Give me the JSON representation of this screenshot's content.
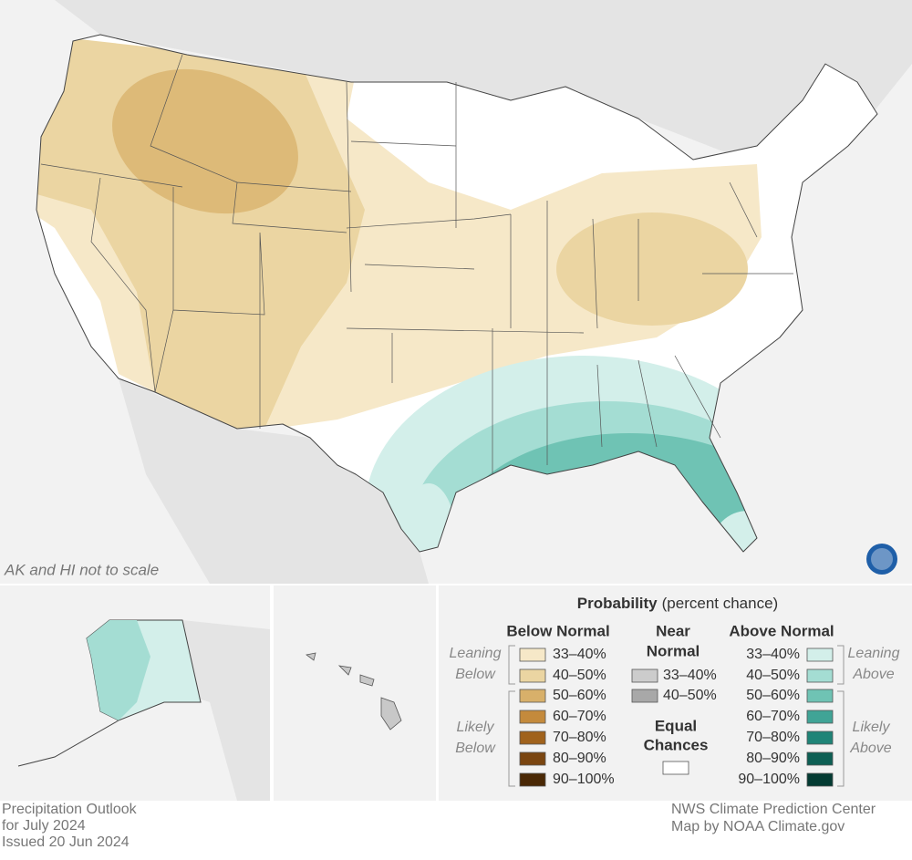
{
  "map": {
    "note": "AK and HI not to scale"
  },
  "legend": {
    "title": "Probability",
    "subtitle": "(percent chance)",
    "below": {
      "heading": "Below Normal",
      "leaning": [
        "Leaning",
        "Below"
      ],
      "likely": [
        "Likely",
        "Below"
      ],
      "items": [
        {
          "label": "33–40%",
          "color": "#f6e8c8"
        },
        {
          "label": "40–50%",
          "color": "#ebd5a2"
        },
        {
          "label": "50–60%",
          "color": "#d8b06a"
        },
        {
          "label": "60–70%",
          "color": "#c48a3c"
        },
        {
          "label": "70–80%",
          "color": "#a0621c"
        },
        {
          "label": "80–90%",
          "color": "#7a4510"
        },
        {
          "label": "90–100%",
          "color": "#4a2805"
        }
      ]
    },
    "near": {
      "heading": [
        "Near",
        "Normal"
      ],
      "items": [
        {
          "label": "33–40%",
          "color": "#cccccc"
        },
        {
          "label": "40–50%",
          "color": "#a8a8a8"
        }
      ]
    },
    "equal": {
      "heading": [
        "Equal",
        "Chances"
      ],
      "color": "#ffffff"
    },
    "above": {
      "heading": "Above Normal",
      "leaning": [
        "Leaning",
        "Above"
      ],
      "likely": [
        "Likely",
        "Above"
      ],
      "items": [
        {
          "label": "33–40%",
          "color": "#d3efea"
        },
        {
          "label": "40–50%",
          "color": "#a4ddd3"
        },
        {
          "label": "50–60%",
          "color": "#6fc3b4"
        },
        {
          "label": "60–70%",
          "color": "#40a496"
        },
        {
          "label": "70–80%",
          "color": "#1f8477"
        },
        {
          "label": "80–90%",
          "color": "#0d5f54"
        },
        {
          "label": "90–100%",
          "color": "#043b33"
        }
      ]
    }
  },
  "footer": {
    "left": [
      "Precipitation Outlook",
      "for July 2024",
      "Issued 20 Jun 2024"
    ],
    "right": [
      "NWS Climate Prediction Center",
      "Map by NOAA Climate.gov"
    ]
  }
}
